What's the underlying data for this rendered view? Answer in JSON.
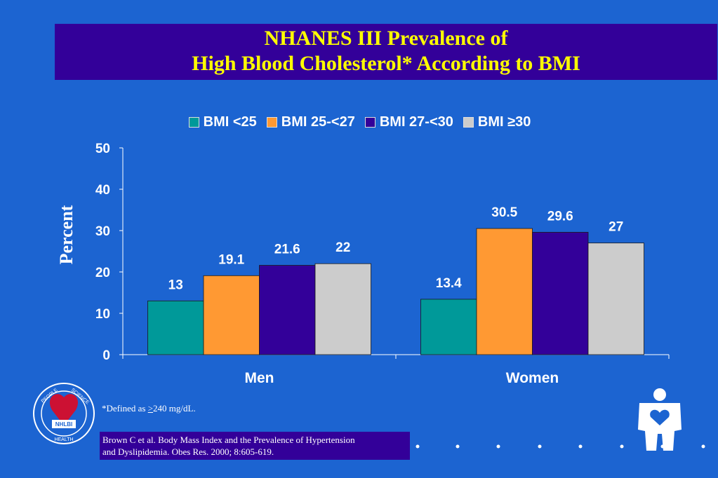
{
  "slide": {
    "title_line1": "NHANES III Prevalence of",
    "title_line2": "High Blood Cholesterol* According to BMI",
    "footnote_prefix": "*Defined as ",
    "footnote_symbol": ">",
    "footnote_suffix": "240 mg/dL.",
    "citation_line1": "Brown C et al. Body Mass Index and  the Prevalence of Hypertension",
    "citation_line2": "and Dyslipidemia. Obes Res. 2000; 8:605-619.",
    "logo_text": {
      "top_left": "PEOPLE",
      "top_right": "SCIENCE",
      "center": "NHLBI",
      "bottom": "HEALTH"
    }
  },
  "colors": {
    "background": "#1c64d1",
    "title_band": "#330099",
    "title_text": "#ffff00",
    "series": [
      "#009999",
      "#ff9933",
      "#330099",
      "#cccccc"
    ]
  },
  "chart_data": {
    "type": "bar",
    "categories": [
      "Men",
      "Women"
    ],
    "series": [
      {
        "name": "BMI <25",
        "values": [
          13,
          13.4
        ]
      },
      {
        "name": "BMI 25-<27",
        "values": [
          19.1,
          30.5
        ]
      },
      {
        "name": "BMI 27-<30",
        "values": [
          21.6,
          29.6
        ]
      },
      {
        "name": "BMI ≥30",
        "values": [
          22,
          27
        ]
      }
    ],
    "data_labels": [
      [
        "13",
        "13.4"
      ],
      [
        "19.1",
        "30.5"
      ],
      [
        "21.6",
        "29.6"
      ],
      [
        "22",
        "27"
      ]
    ],
    "ylabel": "Percent",
    "ylim": [
      0,
      50
    ],
    "yticks": [
      0,
      10,
      20,
      30,
      40,
      50
    ],
    "legend_position": "top",
    "grid": false
  }
}
